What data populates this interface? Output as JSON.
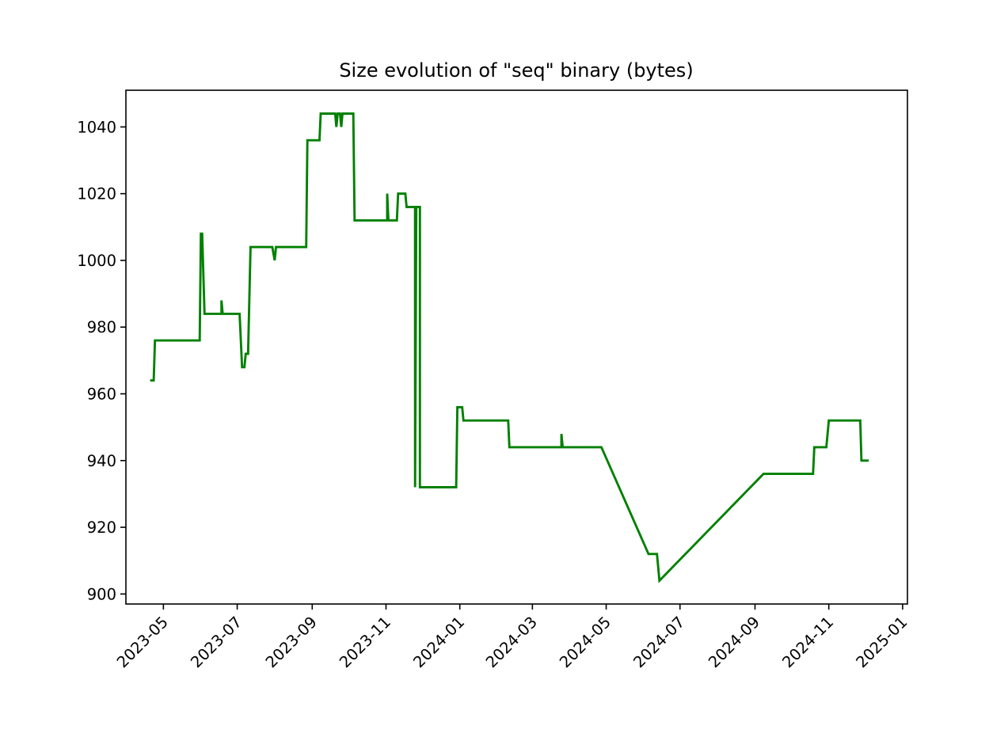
{
  "chart_data": {
    "type": "line",
    "title": "Size evolution of \"seq\" binary (bytes)",
    "xlabel": "",
    "ylabel": "",
    "x_axis": {
      "kind": "date",
      "range": [
        "2023-03-31",
        "2025-01-05"
      ],
      "ticks": [
        "2023-05",
        "2023-07",
        "2023-09",
        "2023-11",
        "2024-01",
        "2024-03",
        "2024-05",
        "2024-07",
        "2024-09",
        "2024-11",
        "2025-01"
      ]
    },
    "y_axis": {
      "range": [
        897,
        1051
      ],
      "ticks": [
        900,
        920,
        940,
        960,
        980,
        1000,
        1020,
        1040
      ]
    },
    "grid": false,
    "legend": "none",
    "series": [
      {
        "color": "#008000",
        "points": [
          [
            "2023-04-20",
            964
          ],
          [
            "2023-04-23",
            964
          ],
          [
            "2023-04-24",
            976
          ],
          [
            "2023-05-31",
            976
          ],
          [
            "2023-06-01",
            1008
          ],
          [
            "2023-06-02",
            1008
          ],
          [
            "2023-06-04",
            984
          ],
          [
            "2023-06-18",
            984
          ],
          [
            "2023-06-18",
            988
          ],
          [
            "2023-06-19",
            984
          ],
          [
            "2023-07-03",
            984
          ],
          [
            "2023-07-05",
            968
          ],
          [
            "2023-07-07",
            968
          ],
          [
            "2023-07-08",
            972
          ],
          [
            "2023-07-10",
            972
          ],
          [
            "2023-07-12",
            1004
          ],
          [
            "2023-07-30",
            1004
          ],
          [
            "2023-08-01",
            1000
          ],
          [
            "2023-08-02",
            1004
          ],
          [
            "2023-08-27",
            1004
          ],
          [
            "2023-08-28",
            1036
          ],
          [
            "2023-09-07",
            1036
          ],
          [
            "2023-09-08",
            1044
          ],
          [
            "2023-09-20",
            1044
          ],
          [
            "2023-09-21",
            1040
          ],
          [
            "2023-09-22",
            1044
          ],
          [
            "2023-09-24",
            1044
          ],
          [
            "2023-09-25",
            1040
          ],
          [
            "2023-09-26",
            1044
          ],
          [
            "2023-10-05",
            1044
          ],
          [
            "2023-10-06",
            1012
          ],
          [
            "2023-11-02",
            1012
          ],
          [
            "2023-11-02",
            1020
          ],
          [
            "2023-11-03",
            1012
          ],
          [
            "2023-11-10",
            1012
          ],
          [
            "2023-11-11",
            1020
          ],
          [
            "2023-11-17",
            1020
          ],
          [
            "2023-11-18",
            1016
          ],
          [
            "2023-11-25",
            1016
          ],
          [
            "2023-11-25",
            932
          ],
          [
            "2023-11-26",
            1016
          ],
          [
            "2023-11-29",
            1016
          ],
          [
            "2023-11-29",
            932
          ],
          [
            "2023-12-29",
            932
          ],
          [
            "2023-12-30",
            956
          ],
          [
            "2024-01-03",
            956
          ],
          [
            "2024-01-04",
            952
          ],
          [
            "2024-02-10",
            952
          ],
          [
            "2024-02-11",
            944
          ],
          [
            "2024-03-25",
            944
          ],
          [
            "2024-03-25",
            948
          ],
          [
            "2024-03-26",
            944
          ],
          [
            "2024-04-27",
            944
          ],
          [
            "2024-06-05",
            912
          ],
          [
            "2024-06-12",
            912
          ],
          [
            "2024-06-14",
            904
          ],
          [
            "2024-09-08",
            936
          ],
          [
            "2024-10-19",
            936
          ],
          [
            "2024-10-20",
            944
          ],
          [
            "2024-10-30",
            944
          ],
          [
            "2024-11-01",
            952
          ],
          [
            "2024-11-27",
            952
          ],
          [
            "2024-11-28",
            940
          ],
          [
            "2024-12-04",
            940
          ]
        ]
      }
    ]
  }
}
